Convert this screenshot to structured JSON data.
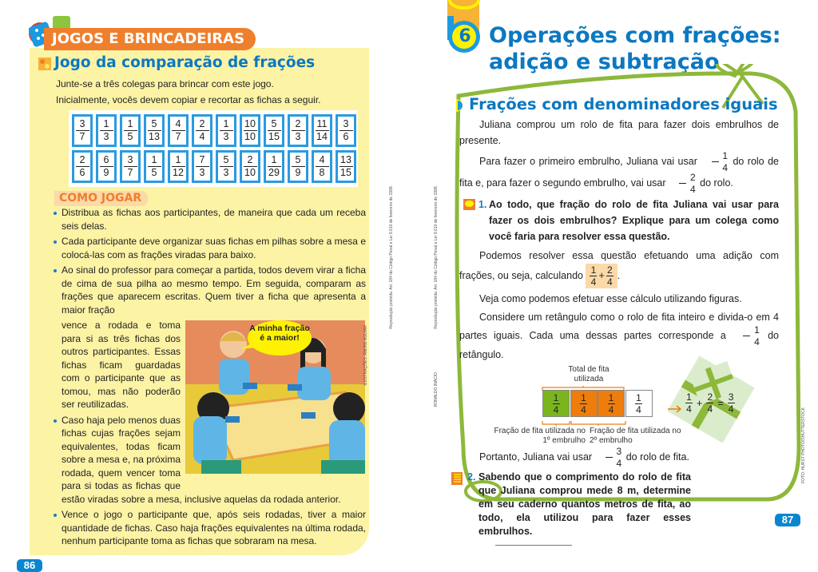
{
  "left_page": {
    "section_label": "JOGOS E BRINCADEIRAS",
    "title": "Jogo da comparação de frações",
    "intro": [
      "Junte-se a três colegas para brincar com este jogo.",
      "Inicialmente, vocês devem copiar e recortar as fichas a seguir."
    ],
    "cards_row1": [
      [
        "3",
        "7"
      ],
      [
        "1",
        "3"
      ],
      [
        "1",
        "5"
      ],
      [
        "5",
        "13"
      ],
      [
        "4",
        "7"
      ],
      [
        "2",
        "4"
      ],
      [
        "1",
        "3"
      ],
      [
        "10",
        "10"
      ],
      [
        "5",
        "15"
      ],
      [
        "2",
        "3"
      ],
      [
        "11",
        "14"
      ],
      [
        "3",
        "6"
      ]
    ],
    "cards_row2": [
      [
        "2",
        "6"
      ],
      [
        "6",
        "9"
      ],
      [
        "3",
        "7"
      ],
      [
        "1",
        "5"
      ],
      [
        "1",
        "12"
      ],
      [
        "7",
        "3"
      ],
      [
        "5",
        "3"
      ],
      [
        "2",
        "10"
      ],
      [
        "1",
        "29"
      ],
      [
        "5",
        "9"
      ],
      [
        "4",
        "8"
      ],
      [
        "13",
        "15"
      ]
    ],
    "how_to_play": "COMO JOGAR",
    "rules": [
      "Distribua as fichas aos participantes, de maneira que cada um receba seis delas.",
      "Cada participante deve organizar suas fichas em pilhas sobre a mesa e colocá-las com as frações viradas para baixo.",
      "Ao sinal do professor para começar a partida, todos devem virar a ficha de cima de sua pilha ao mesmo tempo. Em seguida, comparam as frações que aparecem escritas. Quem tiver a ficha que apresenta a maior fração",
      "vence a rodada e toma para si as três fichas dos outros participantes. Essas fichas ficam guardadas com o participante que as tomou, mas não poderão ser reutilizadas.",
      "Caso haja pelo menos duas fichas cujas frações sejam equivalentes, todas ficam sobre a mesa e, na próxima rodada, quem vencer toma para si todas as fichas que estão viradas sobre a mesa, inclusive aquelas da rodada anterior.",
      "Vence o jogo o participante que, após seis rodadas, tiver a maior quantidade de fichas. Caso haja frações equivalentes na última rodada, nenhum participante toma as fichas que sobraram na mesa."
    ],
    "speech_bubble": "A minha fração é a maior!",
    "illustration_credit": "ILUSTRAÇÕES: ANDRÉ AGUIAR",
    "legal_notice": "Reprodução proibida. Art. 184 do Código Penal e Lei 9.610 de fevereiro de 1998.",
    "page_number": "86"
  },
  "right_page": {
    "chapter_number": "6",
    "chapter_title_1": "Operações com frações:",
    "chapter_title_2": "adição e subtração",
    "section_title": "Frações com denominadores iguais",
    "p1": "Juliana comprou um rolo de fita para fazer dois embrulhos de presente.",
    "p2a": "Para fazer o primeiro embrulho, Juliana vai usar",
    "p2b": "do rolo de fita e, para",
    "p2c": "fazer o segundo embrulho, vai usar",
    "p2d": "do rolo.",
    "q1_number": "1.",
    "q1": "Ao todo, que fração do rolo de fita Juliana vai usar para fazer os dois embrulhos? Explique para um colega como você faria para resolver essa questão.",
    "p3a": "Podemos resolver essa questão efetuando uma adição com frações, ou",
    "p3b": "seja, calculando",
    "plus": "+",
    "equals": "=",
    "period": ".",
    "p4": "Veja como podemos efetuar esse cálculo utilizando figuras.",
    "p5a": "Considere um retângulo como o rolo de fita inteiro e divida-o em 4 partes",
    "p5b": "iguais. Cada uma dessas partes corresponde a",
    "p5c": "do retângulo.",
    "diagram": {
      "total_label": "Total de fita utilizada",
      "cells": [
        {
          "n": "1",
          "d": "4",
          "color": "#7ab51d"
        },
        {
          "n": "1",
          "d": "4",
          "color": "#ee7d0c"
        },
        {
          "n": "1",
          "d": "4",
          "color": "#ee7d0c"
        },
        {
          "n": "1",
          "d": "4",
          "color": "#ffffff"
        }
      ],
      "label_first": "Fração de fita utilizada no 1º embrulho",
      "label_second": "Fração de fita utilizada no 2º embrulho"
    },
    "fractions": {
      "one_fourth": [
        "1",
        "4"
      ],
      "two_fourths": [
        "2",
        "4"
      ],
      "three_fourths": [
        "3",
        "4"
      ]
    },
    "p6a": "Portanto, Juliana vai usar",
    "p6b": "do rolo de fita.",
    "q2_number": "2.",
    "q2": "Sabendo que o comprimento do rolo de fita que Juliana comprou mede 8 m, determine em seu caderno quantos metros de fita, ao todo, ela utilizou para fazer esses embrulhos.",
    "author_credit": "RONALDO INÁCIO",
    "photo_credit": "FOTO: HURST PHOTO/SHUTTERSTOCK",
    "legal_notice": "Reprodução proibida. Art. 184 do Código Penal e Lei 9.610 de fevereiro de 1998.",
    "page_number": "87"
  },
  "colors": {
    "blue": "#0b78c1",
    "orange": "#ef7f2c",
    "yellow_panel": "#fcf3a5",
    "ribbon_green": "#8db83a"
  }
}
